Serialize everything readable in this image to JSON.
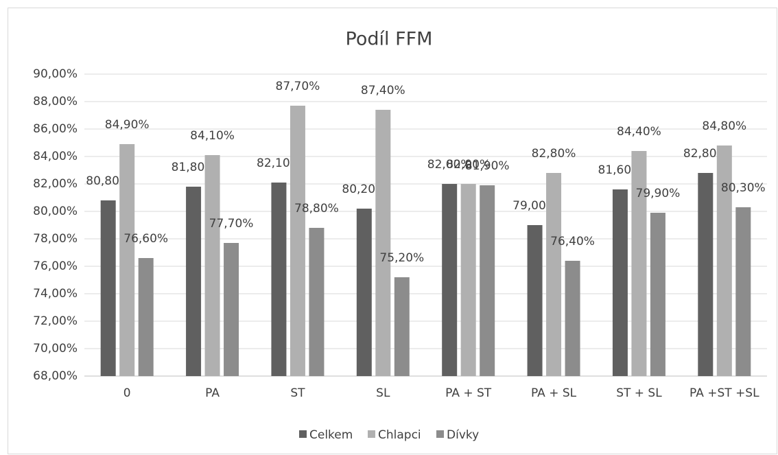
{
  "chart_data": {
    "type": "bar",
    "title": "Podíl FFM",
    "categories": [
      "0",
      "PA",
      "ST",
      "SL",
      "PA + ST",
      "PA + SL",
      "ST + SL",
      "PA +ST +SL"
    ],
    "series": [
      {
        "name": "Celkem",
        "color": "#606060",
        "values": [
          80.8,
          81.8,
          82.1,
          80.2,
          82.0,
          79.0,
          81.6,
          82.8
        ],
        "value_labels": [
          "80,80%",
          "81,80%",
          "82,10%",
          "80,20%",
          "82,00%",
          "79,00%",
          "81,60%",
          "82,80%"
        ]
      },
      {
        "name": "Chlapci",
        "color": "#b0b0b0",
        "values": [
          84.9,
          84.1,
          87.7,
          87.4,
          82.0,
          82.8,
          84.4,
          84.8
        ],
        "value_labels": [
          "84,90%",
          "84,10%",
          "87,70%",
          "87,40%",
          "82,00%",
          "82,80%",
          "84,40%",
          "84,80%"
        ]
      },
      {
        "name": "Dívky",
        "color": "#8c8c8c",
        "values": [
          76.6,
          77.7,
          78.8,
          75.2,
          81.9,
          76.4,
          79.9,
          80.3
        ],
        "value_labels": [
          "76,60%",
          "77,70%",
          "78,80%",
          "75,20%",
          "81,90%",
          "76,40%",
          "79,90%",
          "80,30%"
        ]
      }
    ],
    "ylim": [
      68,
      90
    ],
    "yticks": [
      {
        "value": 68,
        "label": "68,00%"
      },
      {
        "value": 70,
        "label": "70,00%"
      },
      {
        "value": 72,
        "label": "72,00%"
      },
      {
        "value": 74,
        "label": "74,00%"
      },
      {
        "value": 76,
        "label": "76,00%"
      },
      {
        "value": 78,
        "label": "78,00%"
      },
      {
        "value": 80,
        "label": "80,00%"
      },
      {
        "value": 82,
        "label": "82,00%"
      },
      {
        "value": 84,
        "label": "84,00%"
      },
      {
        "value": 86,
        "label": "86,00%"
      },
      {
        "value": 88,
        "label": "88,00%"
      },
      {
        "value": 90,
        "label": "90,00%"
      }
    ],
    "grid": true,
    "legend": "bottom"
  }
}
